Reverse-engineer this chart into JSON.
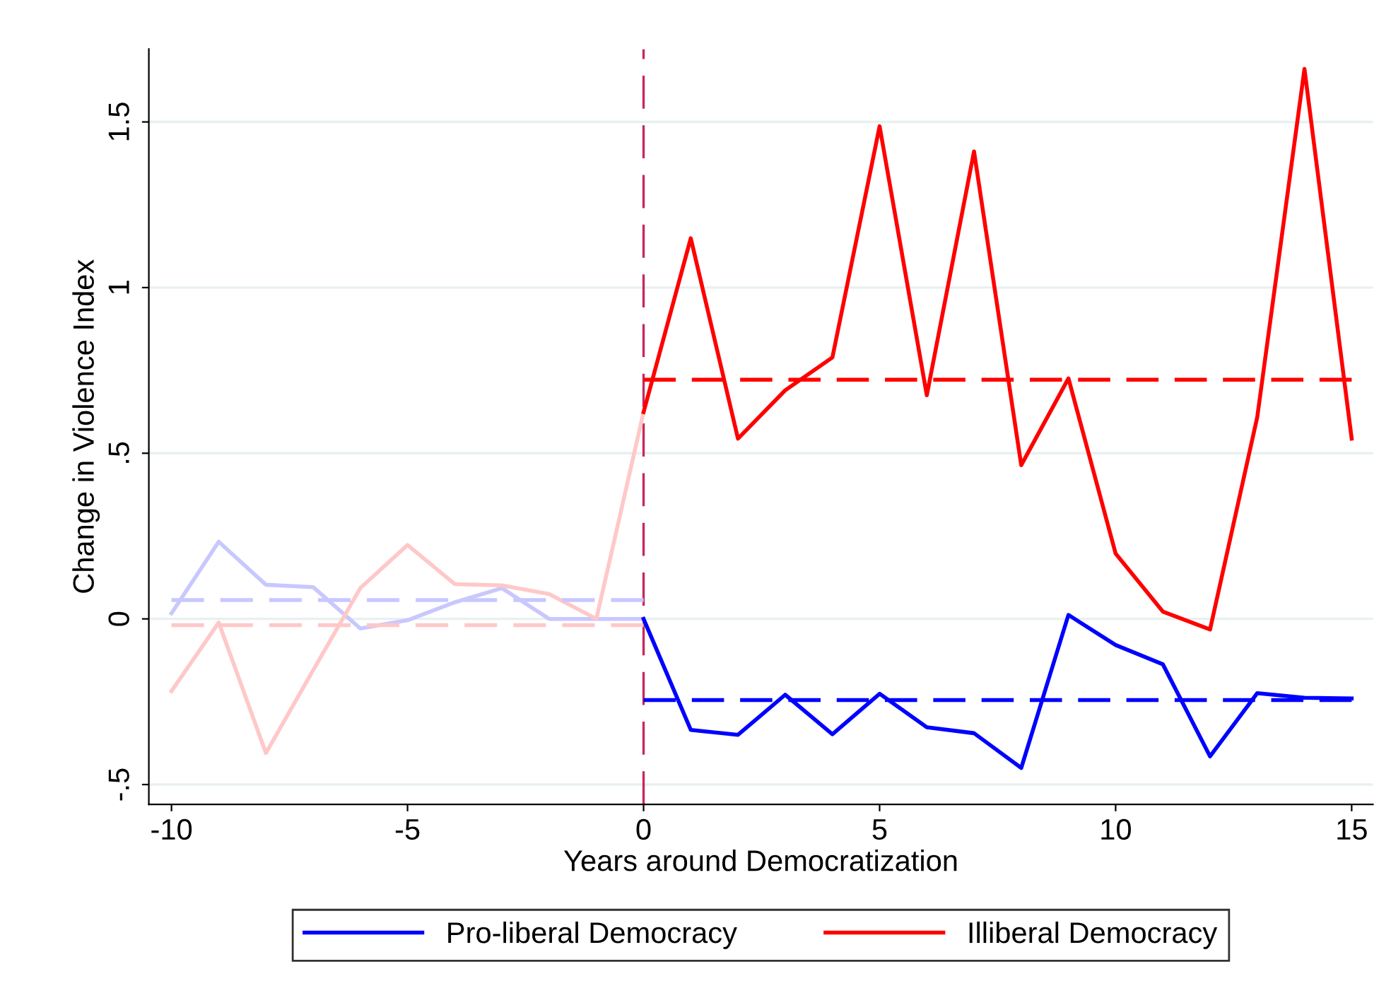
{
  "chart_data": {
    "type": "line",
    "xlabel": "Years around Democratization",
    "ylabel": "Change in Violence Index",
    "xlim": [
      -10.48,
      15.45
    ],
    "xticks": [
      -10,
      -5,
      0,
      5,
      10,
      15
    ],
    "ylim": [
      -0.56,
      1.72
    ],
    "yticks": [
      {
        "value": -0.5,
        "label": "-.5"
      },
      0,
      {
        "value": 0.5,
        "label": ".5"
      },
      1,
      1.5
    ],
    "grid": "y",
    "legend": "bottom",
    "line_style": "solid",
    "marker": "none",
    "series": [
      {
        "color": "#c8c8ff",
        "x": [
          -10,
          -9,
          -8,
          -7,
          -6,
          -5,
          -4,
          -3,
          -2,
          -1,
          0
        ],
        "values": [
          0.017,
          0.233,
          0.103,
          0.096,
          -0.029,
          -0.004,
          0.05,
          0.093,
          0,
          0,
          0
        ]
      },
      {
        "color": "#ffc8c8",
        "x": [
          -10,
          -9,
          -8,
          -7,
          -6,
          -5,
          -4,
          -3,
          -2,
          -1,
          0
        ],
        "values": [
          -0.218,
          -0.011,
          -0.405,
          -0.155,
          0.093,
          0.223,
          0.105,
          0.101,
          0.075,
          0,
          0.624
        ]
      },
      {
        "color": "#c8c8ff",
        "x": [
          -10,
          0
        ],
        "values": [
          0.057,
          0.057
        ],
        "line_style": "dashed"
      },
      {
        "color": "#ffc8c8",
        "x": [
          -10,
          0
        ],
        "values": [
          -0.019,
          -0.019
        ],
        "line_style": "dashed"
      },
      {
        "color": "#0000ff",
        "x": [
          0,
          15
        ],
        "values": [
          -0.245,
          -0.245
        ],
        "line_style": "dashed"
      },
      {
        "color": "#ff0000",
        "x": [
          0,
          15
        ],
        "values": [
          0.722,
          0.722
        ],
        "line_style": "dashed"
      },
      {
        "name": "Pro-liberal Democracy",
        "color": "#0000ff",
        "x": [
          0,
          1,
          2,
          3,
          4,
          5,
          6,
          7,
          8,
          9,
          10,
          11,
          12,
          13,
          14,
          15
        ],
        "values": [
          0,
          -0.335,
          -0.35,
          -0.229,
          -0.348,
          -0.226,
          -0.327,
          -0.345,
          -0.45,
          0.012,
          -0.079,
          -0.137,
          -0.415,
          -0.224,
          -0.238,
          -0.24
        ]
      },
      {
        "name": "Illiberal Democracy",
        "color": "#ff0000",
        "x": [
          0,
          1,
          2,
          3,
          4,
          5,
          6,
          7,
          8,
          9,
          10,
          11,
          12,
          13,
          14,
          15
        ],
        "values": [
          0.624,
          1.149,
          0.544,
          0.69,
          0.789,
          1.487,
          0.675,
          1.411,
          0.464,
          0.726,
          0.197,
          0.022,
          -0.032,
          0.609,
          1.66,
          0.544
        ]
      }
    ],
    "ref_lines": [
      {
        "axis": "x",
        "value": 0,
        "color": "#c8285a",
        "line_style": "dashed"
      }
    ]
  }
}
